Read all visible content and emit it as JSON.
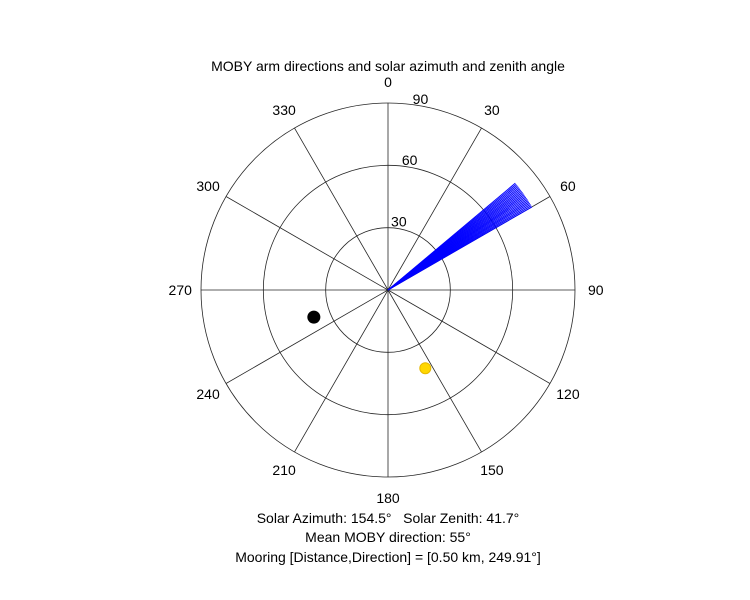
{
  "chart_data": {
    "type": "polar",
    "title": "MOBY arm directions and solar azimuth and zenith angle",
    "theta_direction": "clockwise",
    "theta_zero": "top",
    "r_max": 90,
    "theta_ticks": [
      "0",
      "30",
      "60",
      "90",
      "120",
      "150",
      "180",
      "210",
      "240",
      "270",
      "300",
      "330"
    ],
    "theta_tick_values": [
      0,
      30,
      60,
      90,
      120,
      150,
      180,
      210,
      240,
      270,
      300,
      330
    ],
    "r_ticks": [
      "30",
      "60",
      "90"
    ],
    "r_tick_values": [
      30,
      60,
      90
    ],
    "grid": true,
    "series": [
      {
        "kind": "lines",
        "color": "#0000ff",
        "r": 80,
        "directions_deg": [
          50.0,
          50.5,
          51.0,
          51.5,
          52.0,
          52.5,
          53.0,
          53.5,
          54.0,
          54.5,
          55.0,
          55.5,
          56.0,
          56.5,
          57.0,
          57.5,
          58.0,
          58.5,
          59.0,
          59.5,
          60.0
        ]
      },
      {
        "kind": "marker",
        "color": "#000000",
        "theta": 249.91,
        "r": 38
      },
      {
        "kind": "marker",
        "color": "#ffd700",
        "theta": 154.5,
        "r": 41.7
      }
    ]
  },
  "captions": {
    "line1": "Solar Azimuth: 154.5°   Solar Zenith: 41.7°",
    "line2": "Mean MOBY direction: 55°",
    "line3": "Mooring [Distance,Direction] = [0.50 km, 249.91°]"
  }
}
